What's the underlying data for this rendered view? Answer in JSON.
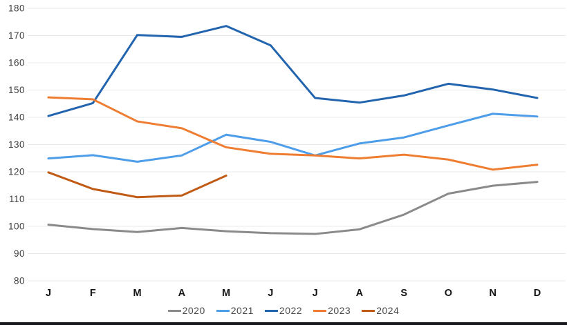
{
  "chart_data": {
    "type": "line",
    "title": "",
    "xlabel": "",
    "ylabel": "",
    "categories": [
      "J",
      "F",
      "M",
      "A",
      "M",
      "J",
      "J",
      "A",
      "S",
      "O",
      "N",
      "D"
    ],
    "ylim": [
      80,
      180
    ],
    "ytick_labels": [
      "180",
      "170",
      "160",
      "150",
      "140",
      "130",
      "120",
      "110",
      "100",
      "90",
      "80"
    ],
    "grid": "horizontal",
    "gridline_color": "#e8e8e8",
    "legend_position": "bottom-center",
    "series": [
      {
        "name": "2020",
        "color": "#8a8a8a",
        "values": [
          100.6,
          99.0,
          97.9,
          99.4,
          98.2,
          97.5,
          97.2,
          98.9,
          104.3,
          112.0,
          114.9,
          116.3
        ]
      },
      {
        "name": "2021",
        "color": "#4d9de9",
        "values": [
          124.9,
          126.1,
          123.7,
          126.0,
          133.6,
          131.0,
          126.0,
          130.4,
          132.6,
          137.0,
          141.3,
          140.3
        ]
      },
      {
        "name": "2022",
        "color": "#2264ae",
        "values": [
          140.5,
          145.2,
          170.2,
          169.5,
          173.5,
          166.4,
          147.1,
          145.4,
          148.0,
          152.3,
          150.2,
          147.1
        ]
      },
      {
        "name": "2023",
        "color": "#ee7d31",
        "values": [
          147.3,
          146.6,
          138.5,
          136.0,
          129.0,
          126.6,
          126.0,
          124.9,
          126.3,
          124.5,
          120.8,
          122.6
        ]
      },
      {
        "name": "2024",
        "color": "#c05a14",
        "values": [
          119.8,
          113.7,
          110.7,
          111.3,
          118.6,
          null,
          null,
          null,
          null,
          null,
          null,
          null
        ]
      }
    ]
  }
}
